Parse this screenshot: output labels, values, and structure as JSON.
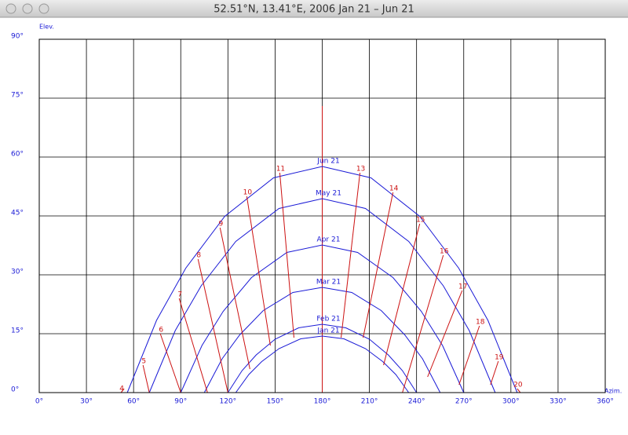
{
  "chart_data": {
    "type": "line",
    "title": "52.51°N, 13.41°E, 2006 Jan 21 – Jun 21",
    "x_label": "Azim.",
    "y_label": "Elev.",
    "xlim": [
      0,
      360
    ],
    "xticks": [
      {
        "value": 0,
        "label": "0°"
      },
      {
        "value": 30,
        "label": "30°"
      },
      {
        "value": 60,
        "label": "60°"
      },
      {
        "value": 90,
        "label": "90°"
      },
      {
        "value": 120,
        "label": "120°"
      },
      {
        "value": 150,
        "label": "150°"
      },
      {
        "value": 180,
        "label": "180°"
      },
      {
        "value": 210,
        "label": "210°"
      },
      {
        "value": 240,
        "label": "240°"
      },
      {
        "value": 270,
        "label": "270°"
      },
      {
        "value": 300,
        "label": "300°"
      },
      {
        "value": 330,
        "label": "330°"
      },
      {
        "value": 360,
        "label": "360°"
      }
    ],
    "ylim": [
      0,
      90
    ],
    "yticks": [
      {
        "value": 0,
        "label": "0°"
      },
      {
        "value": 15,
        "label": "15°"
      },
      {
        "value": 30,
        "label": "30°"
      },
      {
        "value": 45,
        "label": "45°"
      },
      {
        "value": 60,
        "label": "60°"
      },
      {
        "value": 75,
        "label": "75°"
      },
      {
        "value": 90,
        "label": "90°"
      }
    ],
    "grid": true,
    "reference_x": 180,
    "series": [
      {
        "name": "Jun 21",
        "color": "#1a1ad6",
        "x": [
          56,
          74.6,
          93.2,
          118,
          149,
          180,
          211,
          242,
          266.8,
          285.4,
          304
        ],
        "values": [
          0,
          18.4,
          31.7,
          44.9,
          54.7,
          57.6,
          54.7,
          44.9,
          31.7,
          18.4,
          0
        ]
      },
      {
        "name": "May 21",
        "color": "#1a1ad6",
        "x": [
          70,
          86.5,
          103,
          125,
          152.5,
          180,
          207.5,
          235,
          257,
          273.5,
          290
        ],
        "values": [
          0,
          15.8,
          27.2,
          38.5,
          46.9,
          49.4,
          46.9,
          38.5,
          27.2,
          15.8,
          0
        ]
      },
      {
        "name": "Apr 21",
        "color": "#1a1ad6",
        "x": [
          90,
          103.5,
          117,
          135,
          157.5,
          180,
          202.5,
          225,
          243,
          256.5,
          270
        ],
        "values": [
          0,
          12.0,
          20.7,
          29.3,
          35.7,
          37.6,
          35.7,
          29.3,
          20.7,
          12.0,
          0
        ]
      },
      {
        "name": "Mar 21",
        "color": "#1a1ad6",
        "x": [
          105,
          116.3,
          127.5,
          142.5,
          161.3,
          180,
          198.8,
          217.5,
          232.5,
          243.8,
          255
        ],
        "values": [
          0,
          8.6,
          14.7,
          20.9,
          25.5,
          26.8,
          25.5,
          20.9,
          14.7,
          8.6,
          0
        ]
      },
      {
        "name": "Feb 21",
        "color": "#1a1ad6",
        "x": [
          120,
          129,
          138,
          150,
          165,
          180,
          195,
          210,
          222,
          231,
          240
        ],
        "values": [
          0,
          5.6,
          9.6,
          13.6,
          16.5,
          17.4,
          16.5,
          13.6,
          9.6,
          5.6,
          0
        ]
      },
      {
        "name": "Jan 21",
        "color": "#1a1ad6",
        "x": [
          125,
          133.3,
          141.5,
          152.5,
          166.3,
          180,
          193.8,
          207.5,
          218.5,
          226.8,
          235
        ],
        "values": [
          0,
          4.6,
          7.9,
          11.2,
          13.7,
          14.4,
          13.7,
          11.2,
          7.9,
          4.6,
          0
        ]
      }
    ],
    "hour_color": "#cc1111",
    "hour_lines": [
      {
        "hour": 4,
        "x": [
          52,
          54
        ],
        "values": [
          0,
          1
        ]
      },
      {
        "hour": 5,
        "x": [
          66,
          70
        ],
        "values": [
          7,
          0
        ]
      },
      {
        "hour": 6,
        "x": [
          77,
          90
        ],
        "values": [
          15,
          0
        ]
      },
      {
        "hour": 7,
        "x": [
          89,
          107
        ],
        "values": [
          24,
          0
        ]
      },
      {
        "hour": 8,
        "x": [
          101,
          120
        ],
        "values": [
          34,
          0
        ]
      },
      {
        "hour": 9,
        "x": [
          115,
          134
        ],
        "values": [
          42,
          6
        ]
      },
      {
        "hour": 10,
        "x": [
          132,
          147
        ],
        "values": [
          50,
          12
        ]
      },
      {
        "hour": 11,
        "x": [
          153,
          162
        ],
        "values": [
          56,
          14
        ]
      },
      {
        "hour": 13,
        "x": [
          204,
          192
        ],
        "values": [
          56,
          14
        ]
      },
      {
        "hour": 14,
        "x": [
          225,
          206
        ],
        "values": [
          51,
          14
        ]
      },
      {
        "hour": 15,
        "x": [
          242,
          219
        ],
        "values": [
          43,
          7
        ]
      },
      {
        "hour": 16,
        "x": [
          257,
          231
        ],
        "values": [
          35,
          0
        ]
      },
      {
        "hour": 17,
        "x": [
          269,
          247
        ],
        "values": [
          26,
          4
        ]
      },
      {
        "hour": 18,
        "x": [
          280,
          267
        ],
        "values": [
          17,
          2
        ]
      },
      {
        "hour": 19,
        "x": [
          292,
          287
        ],
        "values": [
          8,
          2
        ]
      },
      {
        "hour": 20,
        "x": [
          304,
          306
        ],
        "values": [
          1,
          0
        ]
      }
    ]
  }
}
